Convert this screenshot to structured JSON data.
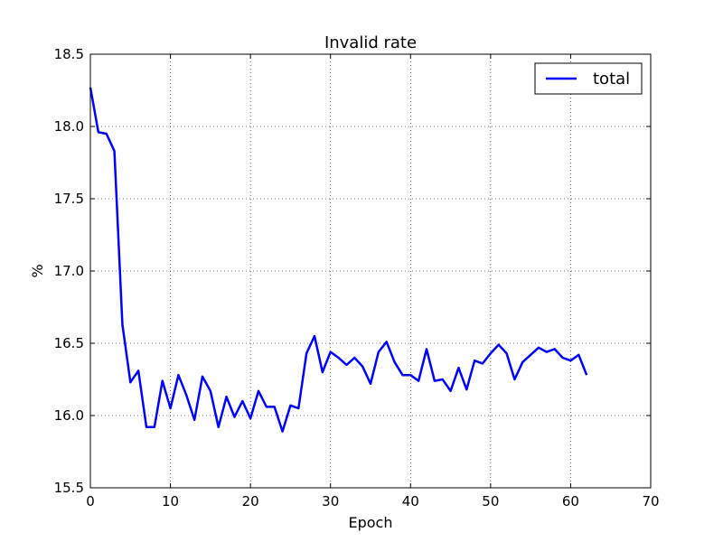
{
  "chart_data": {
    "type": "line",
    "title": "Invalid rate",
    "xlabel": "Epoch",
    "ylabel": "%",
    "xlim": [
      0,
      70
    ],
    "ylim": [
      15.5,
      18.5
    ],
    "xticks": [
      0,
      10,
      20,
      30,
      40,
      50,
      60,
      70
    ],
    "yticks": [
      15.5,
      16.0,
      16.5,
      17.0,
      17.5,
      18.0,
      18.5
    ],
    "xtick_labels": [
      "0",
      "10",
      "20",
      "30",
      "40",
      "50",
      "60",
      "70"
    ],
    "ytick_labels": [
      "15.5",
      "16.0",
      "16.5",
      "17.0",
      "17.5",
      "18.0",
      "18.5"
    ],
    "grid": true,
    "legend": "top-right",
    "series": [
      {
        "name": "total",
        "color": "#0000ff",
        "x": [
          0,
          1,
          2,
          3,
          4,
          5,
          6,
          7,
          8,
          9,
          10,
          11,
          12,
          13,
          14,
          15,
          16,
          17,
          18,
          19,
          20,
          21,
          22,
          23,
          24,
          25,
          26,
          27,
          28,
          29,
          30,
          31,
          32,
          33,
          34,
          35,
          36,
          37,
          38,
          39,
          40,
          41,
          42,
          43,
          44,
          45,
          46,
          47,
          48,
          49,
          50,
          51,
          52,
          53,
          54,
          55,
          56,
          57,
          58,
          59,
          60,
          61,
          62
        ],
        "y": [
          18.27,
          17.96,
          17.95,
          17.83,
          16.63,
          16.23,
          16.31,
          15.92,
          15.92,
          16.24,
          16.05,
          16.28,
          16.14,
          15.97,
          16.27,
          16.17,
          15.92,
          16.13,
          15.99,
          16.1,
          15.98,
          16.17,
          16.06,
          16.06,
          15.89,
          16.07,
          16.05,
          16.43,
          16.55,
          16.3,
          16.44,
          16.4,
          16.35,
          16.4,
          16.34,
          16.22,
          16.44,
          16.51,
          16.37,
          16.28,
          16.28,
          16.24,
          16.46,
          16.24,
          16.25,
          16.17,
          16.33,
          16.18,
          16.38,
          16.36,
          16.43,
          16.49,
          16.43,
          16.25,
          16.37,
          16.42,
          16.47,
          16.44,
          16.46,
          16.4,
          16.38,
          16.42,
          16.28
        ]
      }
    ]
  }
}
